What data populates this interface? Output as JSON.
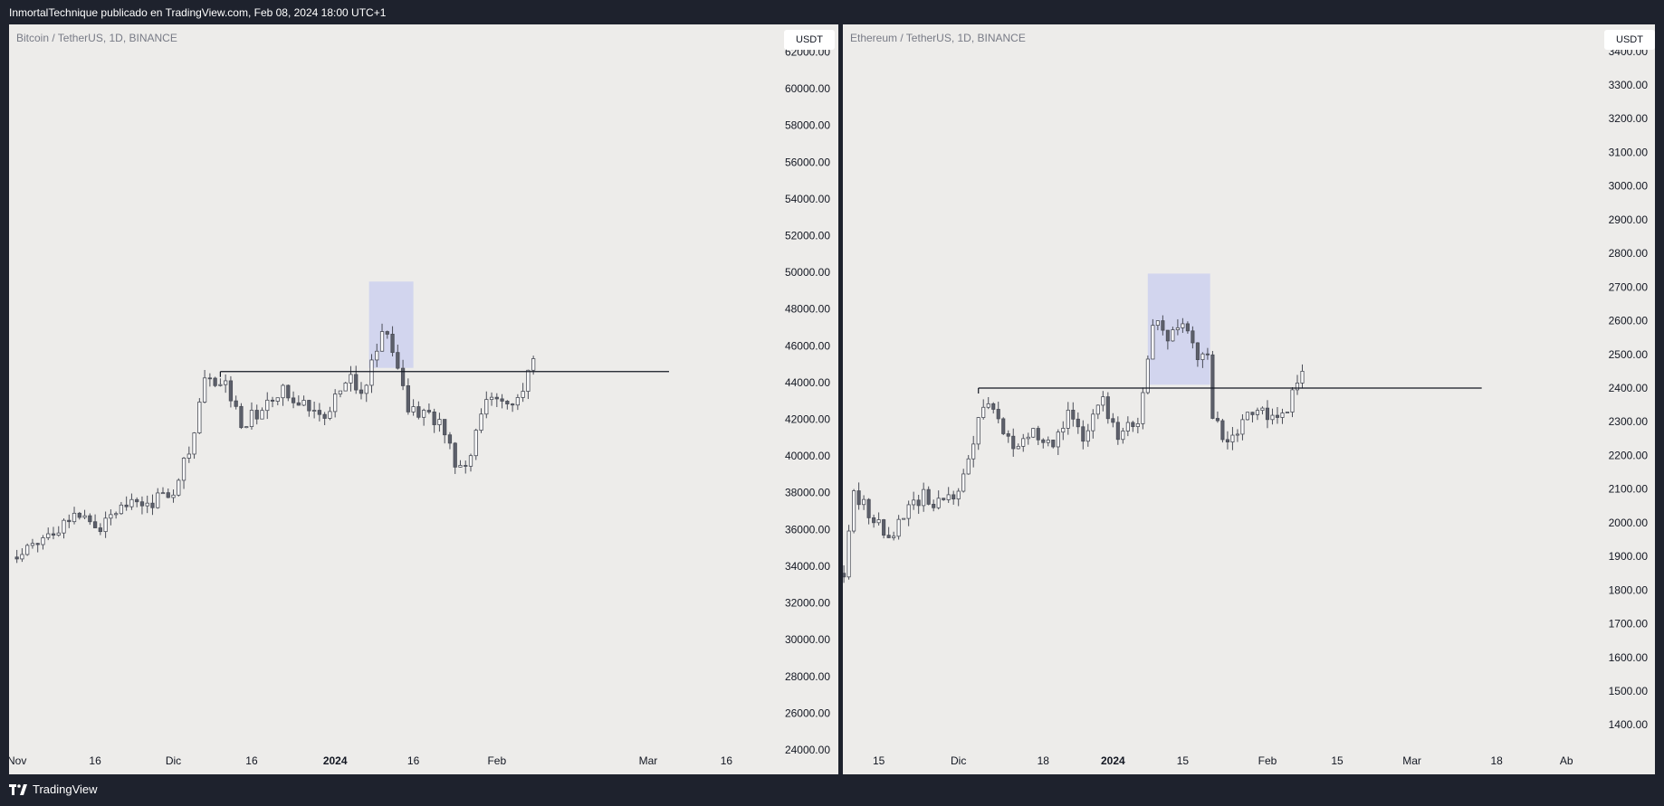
{
  "header": {
    "text": "InmortalTechnique publicado en TradingView.com, Feb 08, 2024 18:00 UTC+1"
  },
  "footer": {
    "brand": "TradingView"
  },
  "colors": {
    "candle_up": "#ffffff",
    "candle_down": "#5d606b",
    "wick": "#4a4d57",
    "highlight_box": "#ccd1ee",
    "level_line": "#131722"
  },
  "chart_data": [
    {
      "type": "candlestick",
      "title": "Bitcoin / TetherUS, 1D, BINANCE",
      "unit_button": "USDT",
      "ylim": [
        24000,
        63500
      ],
      "yticks": [
        "62000.00",
        "60000.00",
        "58000.00",
        "56000.00",
        "54000.00",
        "52000.00",
        "50000.00",
        "48000.00",
        "46000.00",
        "44000.00",
        "42000.00",
        "40000.00",
        "38000.00",
        "36000.00",
        "34000.00",
        "32000.00",
        "30000.00",
        "28000.00",
        "26000.00",
        "24000.00"
      ],
      "xticks": [
        {
          "label": "Nov",
          "day": 0
        },
        {
          "label": "16",
          "day": 15
        },
        {
          "label": "Dic",
          "day": 30
        },
        {
          "label": "16",
          "day": 45
        },
        {
          "label": "2024",
          "day": 61
        },
        {
          "label": "16",
          "day": 76
        },
        {
          "label": "Feb",
          "day": 92
        },
        {
          "label": "Mar",
          "day": 121
        },
        {
          "label": "16",
          "day": 136
        }
      ],
      "x_range_days": [
        -1.5,
        146
      ],
      "anchor": {
        "start_day": 0,
        "start": 34500,
        "end_day": 99,
        "end": 45300
      },
      "waypoints": [
        {
          "day": 0,
          "p": 34600
        },
        {
          "day": 8,
          "p": 36200
        },
        {
          "day": 13,
          "p": 37100
        },
        {
          "day": 16,
          "p": 36000
        },
        {
          "day": 20,
          "p": 37600
        },
        {
          "day": 25,
          "p": 37400
        },
        {
          "day": 30,
          "p": 38200
        },
        {
          "day": 34,
          "p": 41200
        },
        {
          "day": 36,
          "p": 44000
        },
        {
          "day": 40,
          "p": 43900
        },
        {
          "day": 43,
          "p": 41800
        },
        {
          "day": 47,
          "p": 42500
        },
        {
          "day": 51,
          "p": 43500
        },
        {
          "day": 55,
          "p": 43000
        },
        {
          "day": 59,
          "p": 42300
        },
        {
          "day": 64,
          "p": 44500
        },
        {
          "day": 66,
          "p": 43200
        },
        {
          "day": 70,
          "p": 46500
        },
        {
          "day": 72,
          "p": 46000
        },
        {
          "day": 75,
          "p": 42600
        },
        {
          "day": 78,
          "p": 42400
        },
        {
          "day": 82,
          "p": 41500
        },
        {
          "day": 84,
          "p": 39700
        },
        {
          "day": 87,
          "p": 39900
        },
        {
          "day": 89,
          "p": 42600
        },
        {
          "day": 93,
          "p": 43200
        },
        {
          "day": 96,
          "p": 42800
        },
        {
          "day": 99,
          "p": 45300
        }
      ],
      "highlight_box": {
        "day_from": 67.5,
        "day_to": 76,
        "price_from": 44800,
        "price_to": 49500
      },
      "level_line": {
        "price": 44600,
        "day_from": 39,
        "day_to": 125
      }
    },
    {
      "type": "candlestick",
      "title": "Ethereum / TetherUS, 1D, BINANCE",
      "unit_button": "USDT",
      "ylim": [
        1320,
        3480
      ],
      "yticks": [
        "3400.00",
        "3300.00",
        "3200.00",
        "3100.00",
        "3000.00",
        "2900.00",
        "2800.00",
        "2700.00",
        "2600.00",
        "2500.00",
        "2400.00",
        "2300.00",
        "2200.00",
        "2100.00",
        "2000.00",
        "1900.00",
        "1800.00",
        "1700.00",
        "1600.00",
        "1500.00",
        "1400.00"
      ],
      "xticks": [
        {
          "label": "15",
          "day": 14
        },
        {
          "label": "Dic",
          "day": 30
        },
        {
          "label": "18",
          "day": 47
        },
        {
          "label": "2024",
          "day": 61
        },
        {
          "label": "15",
          "day": 75
        },
        {
          "label": "Feb",
          "day": 92
        },
        {
          "label": "15",
          "day": 106
        },
        {
          "label": "Mar",
          "day": 121
        },
        {
          "label": "18",
          "day": 138
        },
        {
          "label": "Ab",
          "day": 152
        }
      ],
      "x_range_days": [
        6.8,
        158.5
      ],
      "anchor": {
        "start_day": 7,
        "start": 1850,
        "end_day": 99,
        "end": 2450
      },
      "waypoints": [
        {
          "day": 7,
          "p": 1850
        },
        {
          "day": 9,
          "p": 2080
        },
        {
          "day": 13,
          "p": 2020
        },
        {
          "day": 16,
          "p": 1940
        },
        {
          "day": 20,
          "p": 2040
        },
        {
          "day": 23,
          "p": 2080
        },
        {
          "day": 27,
          "p": 2050
        },
        {
          "day": 30,
          "p": 2090
        },
        {
          "day": 33,
          "p": 2250
        },
        {
          "day": 35,
          "p": 2350
        },
        {
          "day": 38,
          "p": 2300
        },
        {
          "day": 41,
          "p": 2220
        },
        {
          "day": 45,
          "p": 2280
        },
        {
          "day": 49,
          "p": 2230
        },
        {
          "day": 52,
          "p": 2320
        },
        {
          "day": 55,
          "p": 2260
        },
        {
          "day": 59,
          "p": 2370
        },
        {
          "day": 62,
          "p": 2250
        },
        {
          "day": 64,
          "p": 2280
        },
        {
          "day": 66,
          "p": 2300
        },
        {
          "day": 69,
          "p": 2600
        },
        {
          "day": 72,
          "p": 2550
        },
        {
          "day": 75,
          "p": 2600
        },
        {
          "day": 78,
          "p": 2500
        },
        {
          "day": 80,
          "p": 2480
        },
        {
          "day": 81,
          "p": 2300
        },
        {
          "day": 84,
          "p": 2250
        },
        {
          "day": 87,
          "p": 2300
        },
        {
          "day": 91,
          "p": 2330
        },
        {
          "day": 95,
          "p": 2310
        },
        {
          "day": 99,
          "p": 2450
        }
      ],
      "highlight_box": {
        "day_from": 68,
        "day_to": 80.5,
        "price_from": 2410,
        "price_to": 2740
      },
      "level_line": {
        "price": 2400,
        "day_from": 34,
        "day_to": 135
      }
    }
  ]
}
